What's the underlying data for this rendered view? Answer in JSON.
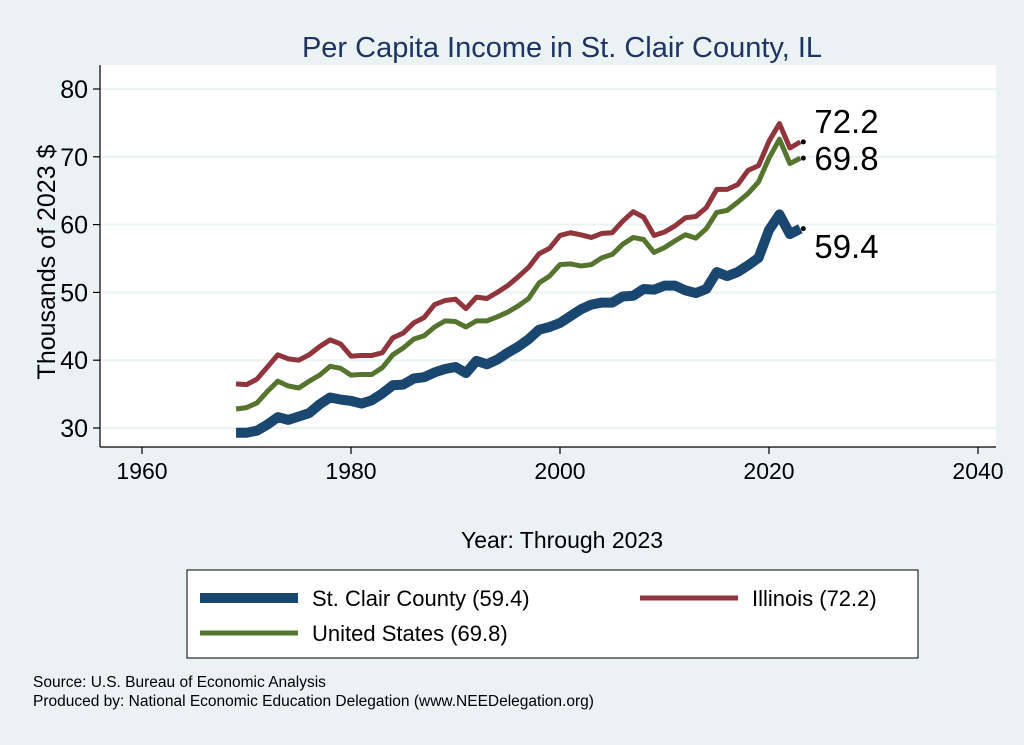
{
  "chart_data": {
    "type": "line",
    "title": "Per Capita Income in St. Clair County, IL",
    "xlabel": "Year: Through 2023",
    "ylabel": "Thousands of 2023 $",
    "xlim": [
      1960,
      2040
    ],
    "ylim": [
      30,
      80
    ],
    "xticks": [
      1960,
      1980,
      2000,
      2020,
      2040
    ],
    "yticks": [
      30,
      40,
      50,
      60,
      70,
      80
    ],
    "grid": true,
    "legend_placement": "bottom",
    "x_start": 1969,
    "series": [
      {
        "name": "St. Clair County (59.4)",
        "color": "#1a476f",
        "end_label": "59.4",
        "values": [
          29.3,
          29.3,
          29.6,
          30.5,
          31.6,
          31.2,
          31.7,
          32.2,
          33.5,
          34.5,
          34.2,
          34.0,
          33.6,
          34.1,
          35.1,
          36.3,
          36.4,
          37.3,
          37.5,
          38.2,
          38.7,
          39.0,
          38.1,
          39.9,
          39.4,
          40.1,
          41.1,
          42.0,
          43.1,
          44.5,
          44.9,
          45.5,
          46.5,
          47.5,
          48.2,
          48.5,
          48.5,
          49.4,
          49.5,
          50.5,
          50.4,
          51.0,
          51.0,
          50.3,
          49.9,
          50.5,
          53.0,
          52.4,
          53.0,
          54.0,
          55.1,
          59.2,
          61.5,
          58.6,
          59.4
        ]
      },
      {
        "name": "Illinois (72.2)",
        "color": "#90353b",
        "end_label": "72.2",
        "values": [
          36.5,
          36.4,
          37.2,
          39.0,
          40.8,
          40.2,
          40.0,
          40.8,
          42.0,
          43.0,
          42.4,
          40.6,
          40.7,
          40.7,
          41.1,
          43.3,
          44.0,
          45.5,
          46.3,
          48.2,
          48.8,
          49.0,
          47.6,
          49.3,
          49.1,
          50.0,
          51.0,
          52.3,
          53.7,
          55.7,
          56.5,
          58.4,
          58.8,
          58.5,
          58.1,
          58.7,
          58.8,
          60.5,
          61.9,
          61.1,
          58.4,
          58.9,
          59.8,
          61.0,
          61.2,
          62.5,
          65.2,
          65.2,
          65.9,
          68.0,
          68.7,
          72.3,
          74.9,
          71.3,
          72.2
        ]
      },
      {
        "name": "United States (69.8)",
        "color": "#55752f",
        "end_label": "69.8",
        "values": [
          32.8,
          33.0,
          33.7,
          35.4,
          36.9,
          36.2,
          35.9,
          36.9,
          37.8,
          39.1,
          38.8,
          37.8,
          37.9,
          37.9,
          38.9,
          40.8,
          41.8,
          43.1,
          43.6,
          44.9,
          45.8,
          45.7,
          44.9,
          45.8,
          45.8,
          46.4,
          47.1,
          48.0,
          49.1,
          51.4,
          52.4,
          54.1,
          54.2,
          53.9,
          54.1,
          55.1,
          55.6,
          57.1,
          58.1,
          57.8,
          55.9,
          56.6,
          57.6,
          58.5,
          58.0,
          59.4,
          61.8,
          62.1,
          63.3,
          64.6,
          66.3,
          69.8,
          72.6,
          69.0,
          69.8
        ]
      }
    ]
  },
  "colors": {
    "background": "#eaf2f3",
    "title": "#1e3461"
  },
  "notes": {
    "source": "Source: U.S. Bureau of Economic Analysis",
    "produced_by": "Produced by: National Economic Education Delegation (www.NEEDelegation.org)"
  }
}
